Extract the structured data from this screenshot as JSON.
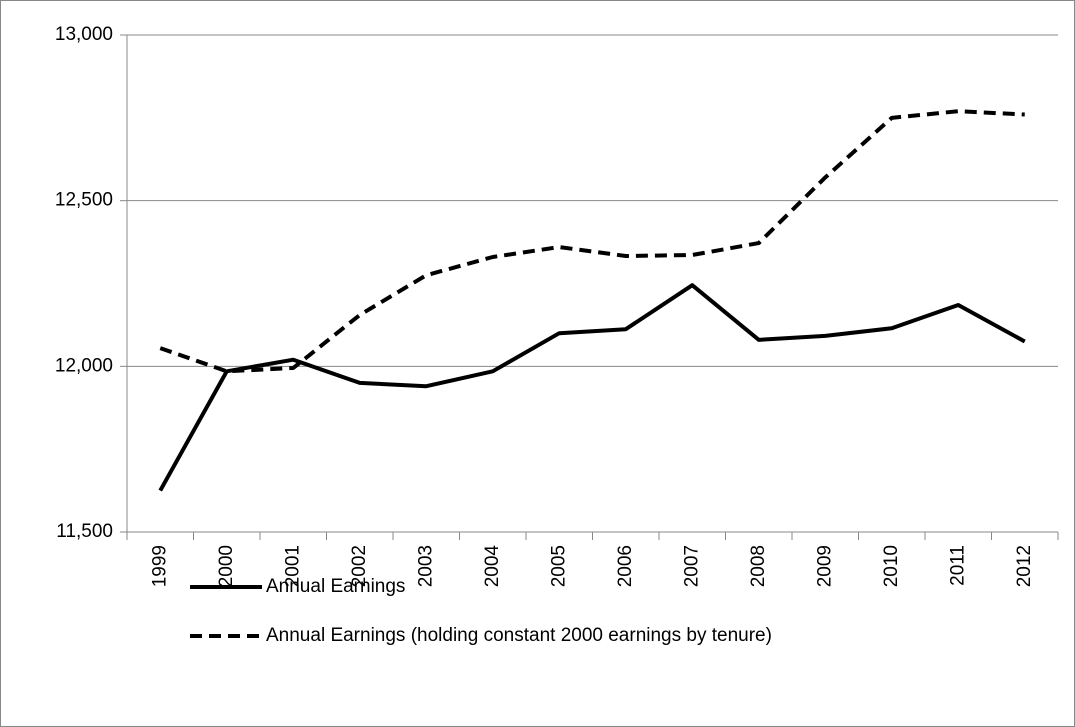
{
  "chart_data": {
    "type": "line",
    "categories": [
      "1999",
      "2000",
      "2001",
      "2002",
      "2003",
      "2004",
      "2005",
      "2006",
      "2007",
      "2008",
      "2009",
      "2010",
      "2011",
      "2012"
    ],
    "series": [
      {
        "name": "Annual Earnings",
        "color": "#000000",
        "line_style": "solid",
        "values": [
          11625,
          11985,
          12020,
          11950,
          11940,
          11985,
          12100,
          12112,
          12245,
          12080,
          12092,
          12115,
          12185,
          12075
        ]
      },
      {
        "name": "Annual Earnings (holding constant 2000 earnings by tenure)",
        "color": "#000000",
        "line_style": "dashed",
        "values": [
          12055,
          11985,
          11995,
          12155,
          12275,
          12330,
          12360,
          12333,
          12336,
          12372,
          12570,
          12750,
          12770,
          12760
        ]
      }
    ],
    "ylim": [
      11500,
      13000
    ],
    "yticks": [
      {
        "value": 11500,
        "label": "11,500"
      },
      {
        "value": 12000,
        "label": "12,000"
      },
      {
        "value": 12500,
        "label": "12,500"
      },
      {
        "value": 13000,
        "label": "13,000"
      }
    ],
    "grid": true,
    "legend": "bottom"
  }
}
